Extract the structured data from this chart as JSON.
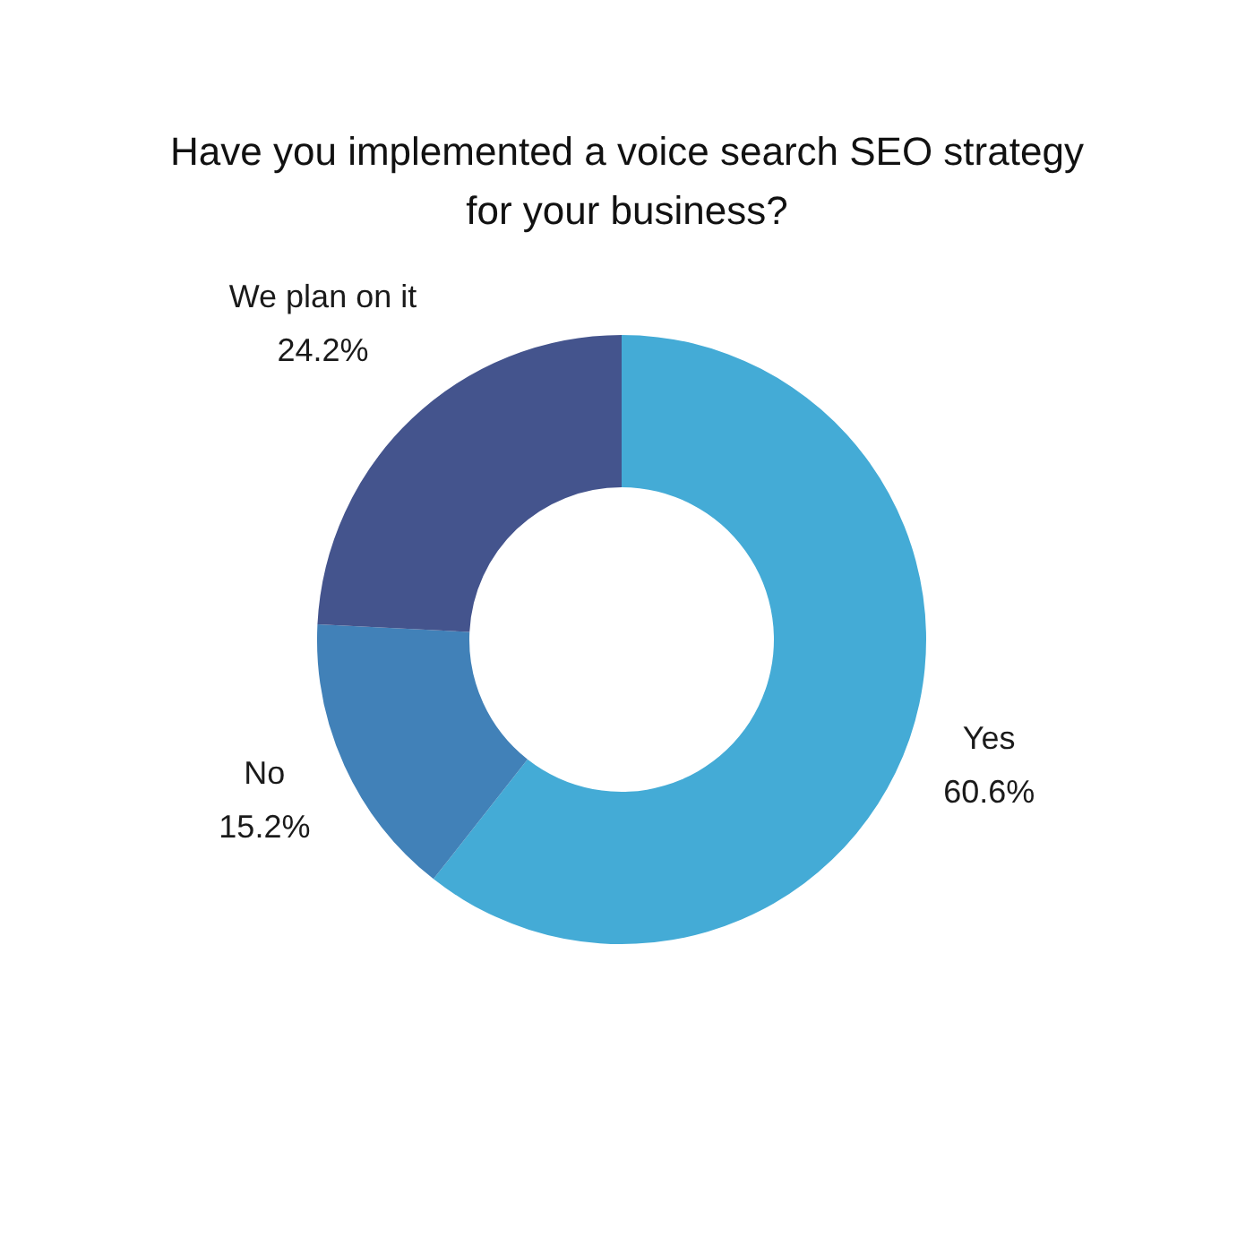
{
  "chart_data": {
    "type": "donut",
    "title": "Have you implemented a voice search SEO strategy for your business?",
    "categories": [
      "Yes",
      "No",
      "We plan on it"
    ],
    "values": [
      60.6,
      15.2,
      24.2
    ],
    "colors": [
      "#44abd6",
      "#4181b8",
      "#44548d"
    ],
    "value_labels": [
      "60.6%",
      "15.2%",
      "24.2%"
    ],
    "legend": false
  }
}
